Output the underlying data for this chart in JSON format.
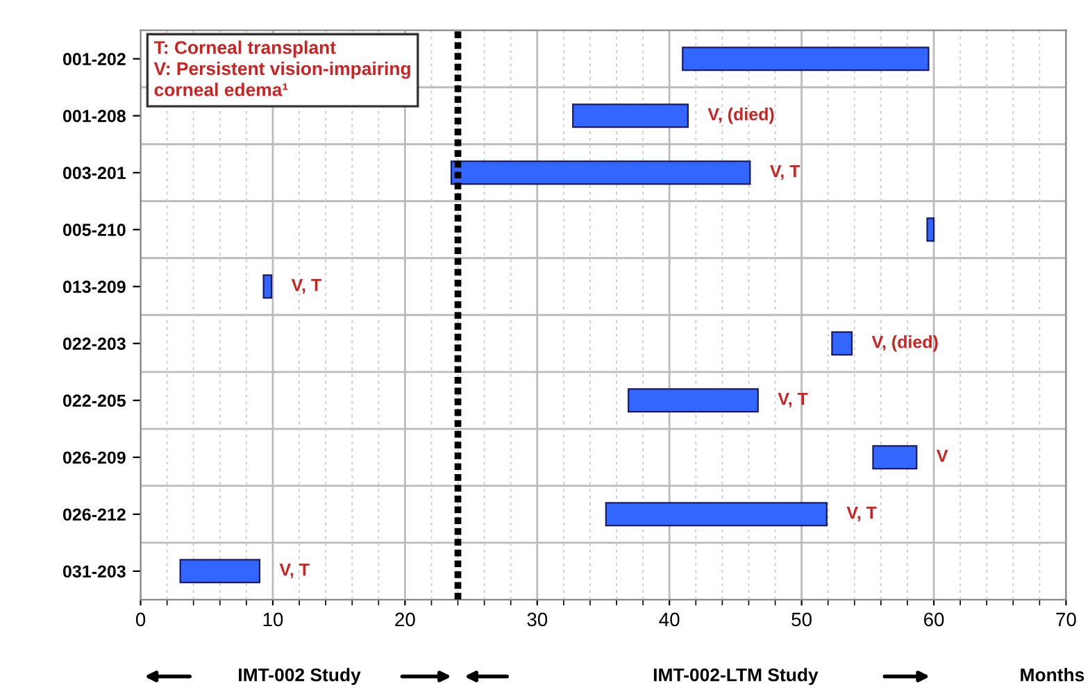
{
  "chart_data": {
    "type": "bar",
    "orientation": "horizontal",
    "xlabel": "Months",
    "categories": [
      "001-202",
      "001-208",
      "003-201",
      "005-210",
      "013-209",
      "022-203",
      "022-205",
      "026-209",
      "026-212",
      "031-203"
    ],
    "base": [
      41,
      32.7,
      23.5,
      59.5,
      9.3,
      52.3,
      36.9,
      55.4,
      35.2,
      3.0
    ],
    "values": [
      18.6,
      8.7,
      22.6,
      0.5,
      0.6,
      1.5,
      9.8,
      3.3,
      16.7,
      6.0
    ],
    "value_labels": [
      null,
      "V, (died)",
      "V, T",
      null,
      "V, T",
      "V, (died)",
      "V, T",
      "V",
      "V, T",
      "V, T"
    ],
    "color": "#3366ff",
    "xlim": [
      0,
      70
    ],
    "xticks": [
      0,
      {
        "value": 2,
        "label": null
      },
      {
        "value": 4,
        "label": null
      },
      {
        "value": 6,
        "label": null
      },
      {
        "value": 8,
        "label": null
      },
      10,
      {
        "value": 12,
        "label": null
      },
      {
        "value": 14,
        "label": null
      },
      {
        "value": 16,
        "label": null
      },
      {
        "value": 18,
        "label": null
      },
      20,
      {
        "value": 22,
        "label": null
      },
      {
        "value": 24,
        "label": null
      },
      {
        "value": 26,
        "label": null
      },
      {
        "value": 28,
        "label": null
      },
      30,
      {
        "value": 32,
        "label": null
      },
      {
        "value": 34,
        "label": null
      },
      {
        "value": 36,
        "label": null
      },
      {
        "value": 38,
        "label": null
      },
      40,
      {
        "value": 42,
        "label": null
      },
      {
        "value": 44,
        "label": null
      },
      {
        "value": 46,
        "label": null
      },
      {
        "value": 48,
        "label": null
      },
      50,
      {
        "value": 52,
        "label": null
      },
      {
        "value": 54,
        "label": null
      },
      {
        "value": 56,
        "label": null
      },
      {
        "value": 58,
        "label": null
      },
      60,
      {
        "value": 62,
        "label": null
      },
      {
        "value": 64,
        "label": null
      },
      {
        "value": 66,
        "label": null
      },
      {
        "value": 68,
        "label": null
      },
      70
    ],
    "grid": true,
    "ref_lines": [
      {
        "axis": "x",
        "value": 24,
        "color": "#000000",
        "line_style": "dotted"
      }
    ],
    "annotations": [
      "T: Corneal transplant\nV: Persistent vision-impairing\ncorneal edema¹",
      "IMT-002 Study",
      "IMT-002-LTM Study"
    ]
  }
}
